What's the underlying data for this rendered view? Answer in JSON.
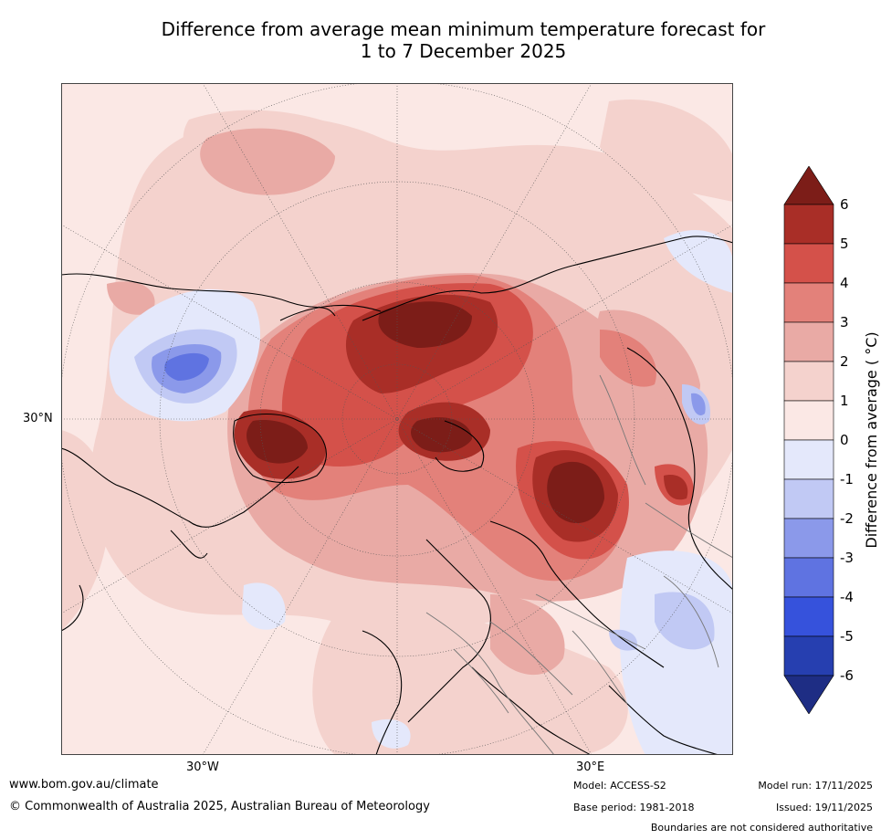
{
  "title": {
    "line1": "Difference from average mean minimum temperature forecast for",
    "line2": "1 to 7 December 2025"
  },
  "map": {
    "lat_labels": [
      "30°N"
    ],
    "lon_labels": [
      "30°W",
      "30°E"
    ],
    "colors": {
      "background": "#fbe8e5",
      "light_warm": "#f4d2cd",
      "mid_warm": "#e9aaa5",
      "warm": "#e3817a",
      "hot": "#d4514a",
      "very_hot": "#a92e27",
      "extreme_hot": "#7c1d18",
      "cool_1": "#e4e8fb",
      "cool_2": "#c1c9f4",
      "cool_3": "#8b99ea",
      "cool_4": "#5f73e1"
    }
  },
  "colorbar": {
    "label": "Difference from average ( °C)",
    "ticks": [
      "6",
      "5",
      "4",
      "3",
      "2",
      "1",
      "0",
      "-1",
      "-2",
      "-3",
      "-4",
      "-5",
      "-6"
    ],
    "colors": [
      "#7c1d18",
      "#a92e27",
      "#d4514a",
      "#e3817a",
      "#e9aaa5",
      "#f4d2cd",
      "#fbe8e5",
      "#e4e8fb",
      "#c1c9f4",
      "#8b99ea",
      "#5f73e1",
      "#3652dc",
      "#263fb0",
      "#1e2d84"
    ]
  },
  "footer": {
    "website": "www.bom.gov.au/climate",
    "copyright": "© Commonwealth of Australia 2025, Australian Bureau of Meteorology",
    "model": "Model: ACCESS-S2",
    "base_period": "Base period: 1981-2018",
    "model_run": "Model run: 17/11/2025",
    "issued": "Issued: 19/11/2025",
    "disclaimer": "Boundaries are not considered authoritative"
  }
}
